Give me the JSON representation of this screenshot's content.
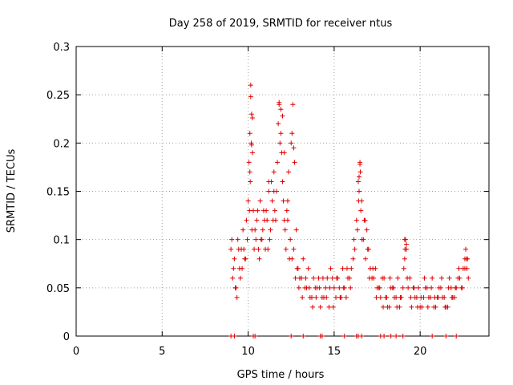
{
  "chart_data": {
    "type": "scatter",
    "title": "Day 258 of 2019, SRMTID for receiver ntus",
    "xlabel": "GPS time / hours",
    "ylabel": "SRMTID / TECUs",
    "xlim": [
      0,
      24
    ],
    "ylim": [
      0,
      0.3
    ],
    "xticks": [
      0,
      5,
      10,
      15,
      20
    ],
    "xtick_labels": [
      "0",
      "5",
      "10",
      "15",
      "20"
    ],
    "yticks": [
      0,
      0.05,
      0.1,
      0.15,
      0.2,
      0.25,
      0.3
    ],
    "ytick_labels": [
      "0",
      "0.05",
      "0.1",
      "0.15",
      "0.2",
      "0.25",
      "0.3"
    ],
    "grid": true,
    "marker": "+",
    "color": "#e00000",
    "series": [
      {
        "name": "SRMTID",
        "x": [
          9.0,
          9.1,
          9.2,
          9.3,
          9.4,
          9.5,
          9.6,
          9.7,
          9.8,
          9.9,
          10.0,
          10.05,
          10.1,
          10.15,
          10.2,
          10.25,
          10.3,
          10.4,
          10.5,
          10.6,
          10.7,
          10.8,
          10.9,
          11.0,
          11.1,
          11.2,
          11.3,
          11.4,
          11.5,
          11.6,
          11.7,
          11.8,
          11.9,
          12.0,
          12.1,
          12.2,
          12.3,
          12.4,
          12.5,
          12.6,
          12.7,
          12.8,
          12.9,
          13.0,
          13.2,
          13.4,
          13.6,
          13.8,
          14.0,
          14.2,
          14.4,
          14.6,
          14.8,
          15.0,
          15.2,
          15.4,
          15.6,
          15.8,
          16.0,
          16.2,
          16.3,
          16.4,
          16.5,
          16.6,
          16.7,
          16.8,
          16.9,
          17.0,
          17.2,
          17.4,
          17.6,
          17.8,
          18.0,
          18.2,
          18.4,
          18.6,
          18.8,
          19.0,
          19.1,
          19.2,
          19.4,
          19.6,
          19.8,
          20.0,
          20.2,
          20.4,
          20.6,
          20.8,
          21.0,
          21.2,
          21.4,
          21.6,
          21.8,
          22.0,
          22.2,
          22.4,
          22.6,
          22.7,
          22.8,
          9.05,
          9.25,
          9.45,
          9.65,
          9.85,
          10.08,
          10.22,
          10.45,
          10.65,
          10.85,
          11.05,
          11.25,
          11.45,
          11.65,
          11.85,
          12.05,
          12.25,
          12.45,
          12.65,
          12.85,
          13.1,
          13.3,
          13.5,
          13.7,
          13.9,
          14.1,
          14.3,
          14.5,
          14.7,
          14.9,
          15.1,
          15.3,
          15.5,
          15.7,
          15.9,
          16.1,
          16.35,
          16.45,
          16.55,
          16.75,
          16.95,
          17.1,
          17.3,
          17.5,
          17.7,
          17.9,
          18.1,
          18.3,
          18.5,
          18.7,
          18.9,
          19.05,
          19.15,
          19.3,
          19.5,
          19.7,
          19.9,
          20.1,
          20.3,
          20.5,
          20.7,
          20.9,
          21.1,
          21.3,
          21.5,
          21.7,
          21.9,
          22.1,
          22.3,
          22.5,
          22.65,
          22.75,
          9.15,
          9.35,
          9.55,
          9.75,
          9.95,
          10.12,
          10.18,
          10.35,
          10.55,
          10.75,
          10.95,
          11.15,
          11.35,
          11.55,
          11.75,
          11.95,
          12.15,
          12.35,
          12.55,
          12.75,
          12.95,
          13.15,
          13.35,
          13.55,
          13.75,
          13.95,
          14.15,
          14.35,
          14.55,
          14.75,
          14.95,
          15.15,
          15.35,
          15.55,
          15.75,
          15.95,
          16.15,
          16.42,
          16.52,
          16.62,
          16.82,
          17.05,
          17.25,
          17.45,
          17.65,
          17.85,
          18.05,
          18.25,
          18.45,
          18.65,
          18.85,
          19.12,
          19.25,
          19.45,
          19.65,
          19.85,
          20.05,
          20.25,
          20.45,
          20.65,
          20.85,
          21.05,
          21.25,
          21.45,
          21.65,
          21.85,
          22.05,
          22.25,
          22.45,
          22.6,
          22.72,
          10.15,
          10.25,
          11.8,
          11.9,
          12.0,
          12.55,
          12.65,
          16.45,
          16.5,
          19.1,
          19.2,
          10.1,
          10.2,
          11.2,
          11.5,
          12.1,
          12.3,
          9.0,
          9.2,
          10.3,
          10.4,
          12.5,
          13.2,
          14.2,
          14.3,
          15.6,
          16.3,
          16.4,
          16.6,
          17.7,
          17.9,
          18.3,
          18.6,
          19.0,
          20.7,
          21.5,
          22.1
        ],
        "y": [
          0.09,
          0.06,
          0.08,
          0.05,
          0.1,
          0.07,
          0.09,
          0.11,
          0.08,
          0.12,
          0.14,
          0.18,
          0.21,
          0.26,
          0.23,
          0.19,
          0.13,
          0.11,
          0.12,
          0.09,
          0.14,
          0.1,
          0.13,
          0.09,
          0.12,
          0.15,
          0.11,
          0.14,
          0.17,
          0.12,
          0.18,
          0.24,
          0.21,
          0.16,
          0.12,
          0.09,
          0.14,
          0.08,
          0.2,
          0.24,
          0.18,
          0.11,
          0.07,
          0.06,
          0.08,
          0.05,
          0.04,
          0.06,
          0.05,
          0.03,
          0.04,
          0.06,
          0.07,
          0.05,
          0.06,
          0.04,
          0.05,
          0.06,
          0.07,
          0.09,
          0.12,
          0.16,
          0.18,
          0.14,
          0.1,
          0.12,
          0.11,
          0.09,
          0.06,
          0.07,
          0.05,
          0.06,
          0.04,
          0.03,
          0.05,
          0.04,
          0.03,
          0.05,
          0.08,
          0.09,
          0.06,
          0.05,
          0.04,
          0.03,
          0.04,
          0.05,
          0.04,
          0.03,
          0.04,
          0.05,
          0.04,
          0.03,
          0.05,
          0.04,
          0.06,
          0.05,
          0.07,
          0.08,
          0.06,
          0.1,
          0.05,
          0.09,
          0.07,
          0.08,
          0.13,
          0.11,
          0.1,
          0.08,
          0.11,
          0.13,
          0.1,
          0.12,
          0.15,
          0.2,
          0.14,
          0.13,
          0.1,
          0.09,
          0.07,
          0.06,
          0.05,
          0.07,
          0.04,
          0.05,
          0.06,
          0.04,
          0.05,
          0.03,
          0.06,
          0.04,
          0.05,
          0.07,
          0.04,
          0.06,
          0.08,
          0.11,
          0.15,
          0.13,
          0.12,
          0.09,
          0.07,
          0.06,
          0.05,
          0.04,
          0.06,
          0.03,
          0.05,
          0.04,
          0.06,
          0.04,
          0.07,
          0.1,
          0.05,
          0.03,
          0.04,
          0.05,
          0.03,
          0.05,
          0.04,
          0.06,
          0.03,
          0.05,
          0.04,
          0.03,
          0.06,
          0.04,
          0.05,
          0.06,
          0.07,
          0.09,
          0.08,
          0.07,
          0.04,
          0.06,
          0.09,
          0.1,
          0.16,
          0.2,
          0.09,
          0.13,
          0.1,
          0.12,
          0.09,
          0.16,
          0.13,
          0.22,
          0.19,
          0.11,
          0.17,
          0.08,
          0.06,
          0.05,
          0.04,
          0.06,
          0.05,
          0.03,
          0.04,
          0.05,
          0.06,
          0.04,
          0.05,
          0.03,
          0.06,
          0.04,
          0.05,
          0.07,
          0.05,
          0.1,
          0.14,
          0.17,
          0.1,
          0.08,
          0.06,
          0.07,
          0.04,
          0.05,
          0.03,
          0.04,
          0.06,
          0.05,
          0.03,
          0.04,
          0.09,
          0.06,
          0.04,
          0.05,
          0.03,
          0.04,
          0.06,
          0.03,
          0.05,
          0.04,
          0.04,
          0.06,
          0.03,
          0.05,
          0.04,
          0.05,
          0.07,
          0.05,
          0.08,
          0.07,
          0.248,
          0.226,
          0.242,
          0.235,
          0.228,
          0.21,
          0.195,
          0.165,
          0.178,
          0.1,
          0.095,
          0.17,
          0.198,
          0.16,
          0.15,
          0.19,
          0.12,
          0.0,
          0.0,
          0.0,
          0.0,
          0.0,
          0.0,
          0.0,
          0.0,
          0.0,
          0.0,
          0.0,
          0.0,
          0.0,
          0.0,
          0.0,
          0.0,
          0.0,
          0.0,
          0.0,
          0.0
        ]
      }
    ]
  }
}
